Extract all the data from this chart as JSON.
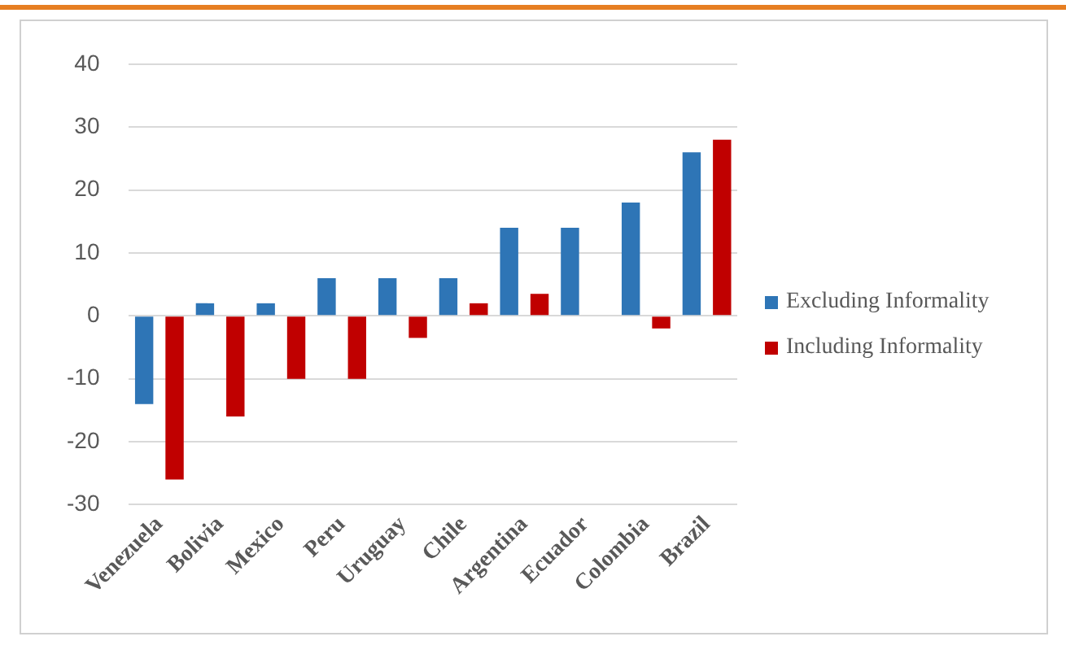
{
  "chart_data": {
    "type": "bar",
    "categories": [
      "Venezuela",
      "Bolivia",
      "Mexico",
      "Peru",
      "Uruguay",
      "Chile",
      "Argentina",
      "Ecuador",
      "Colombia",
      "Brazil"
    ],
    "series": [
      {
        "name": "Excluding Informality",
        "color": "#2e75b6",
        "values": [
          -14,
          2,
          2,
          6,
          6,
          6,
          14,
          14,
          18,
          26
        ]
      },
      {
        "name": "Including Informality",
        "color": "#c00000",
        "values": [
          -26,
          -16,
          -10,
          -10,
          -3.5,
          2,
          3.5,
          null,
          -2,
          28
        ]
      }
    ],
    "ylim": [
      -30,
      40
    ],
    "yticks": [
      -30,
      -20,
      -10,
      0,
      10,
      20,
      30,
      40
    ],
    "grid": "y",
    "legend": "right"
  }
}
